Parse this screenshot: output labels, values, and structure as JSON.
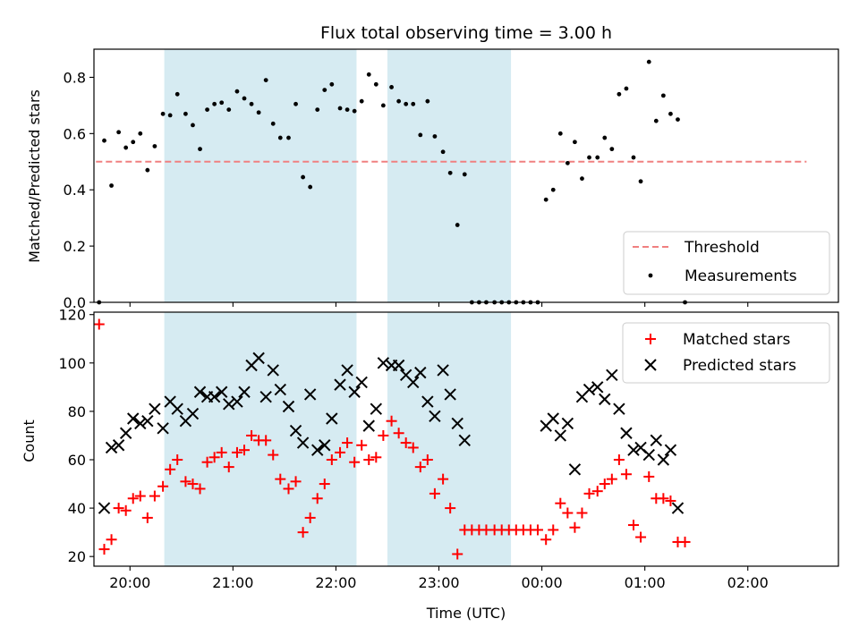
{
  "chart_data": [
    {
      "type": "scatter",
      "title": "Flux total observing time = 3.00 h",
      "xlabel": "",
      "ylabel": "Matched/Predicted stars",
      "xlim": [
        -0.35,
        6.88
      ],
      "ylim": [
        0,
        0.9
      ],
      "yticks": [
        0.0,
        0.2,
        0.4,
        0.6,
        0.8
      ],
      "ytick_labels": [
        "0.0",
        "0.2",
        "0.4",
        "0.6",
        "0.8"
      ],
      "shaded_intervals": [
        [
          0.333,
          2.2
        ],
        [
          2.5,
          3.7
        ]
      ],
      "colors": {
        "threshold": "#f08080",
        "measurements": "#000000",
        "shade": "#add8e6"
      },
      "legend": {
        "placement": "lower-right",
        "entries": [
          "Threshold",
          "Measurements"
        ]
      },
      "series": [
        {
          "name": "Threshold",
          "kind": "line",
          "x": [
            -0.33,
            6.57
          ],
          "values": [
            0.5,
            0.5
          ]
        },
        {
          "name": "Measurements",
          "kind": "points",
          "points": [
            [
              -0.3,
              0.0
            ],
            [
              -0.25,
              0.575
            ],
            [
              -0.18,
              0.415
            ],
            [
              -0.11,
              0.605
            ],
            [
              -0.04,
              0.55
            ],
            [
              0.03,
              0.57
            ],
            [
              0.1,
              0.6
            ],
            [
              0.17,
              0.47
            ],
            [
              0.24,
              0.555
            ],
            [
              0.32,
              0.67
            ],
            [
              0.39,
              0.665
            ],
            [
              0.46,
              0.74
            ],
            [
              0.54,
              0.67
            ],
            [
              0.61,
              0.63
            ],
            [
              0.68,
              0.545
            ],
            [
              0.75,
              0.685
            ],
            [
              0.82,
              0.705
            ],
            [
              0.89,
              0.71
            ],
            [
              0.96,
              0.685
            ],
            [
              1.04,
              0.75
            ],
            [
              1.11,
              0.725
            ],
            [
              1.18,
              0.705
            ],
            [
              1.25,
              0.675
            ],
            [
              1.32,
              0.79
            ],
            [
              1.39,
              0.635
            ],
            [
              1.46,
              0.585
            ],
            [
              1.54,
              0.585
            ],
            [
              1.61,
              0.705
            ],
            [
              1.68,
              0.445
            ],
            [
              1.75,
              0.41
            ],
            [
              1.82,
              0.685
            ],
            [
              1.89,
              0.755
            ],
            [
              1.96,
              0.775
            ],
            [
              2.04,
              0.69
            ],
            [
              2.11,
              0.685
            ],
            [
              2.18,
              0.68
            ],
            [
              2.25,
              0.715
            ],
            [
              2.32,
              0.81
            ],
            [
              2.39,
              0.775
            ],
            [
              2.46,
              0.7
            ],
            [
              2.54,
              0.765
            ],
            [
              2.61,
              0.715
            ],
            [
              2.68,
              0.705
            ],
            [
              2.75,
              0.705
            ],
            [
              2.82,
              0.595
            ],
            [
              2.89,
              0.715
            ],
            [
              2.96,
              0.59
            ],
            [
              3.04,
              0.535
            ],
            [
              3.11,
              0.46
            ],
            [
              3.18,
              0.275
            ],
            [
              3.25,
              0.455
            ],
            [
              3.32,
              0.0
            ],
            [
              3.39,
              0.0
            ],
            [
              3.46,
              0.0
            ],
            [
              3.54,
              0.0
            ],
            [
              3.61,
              0.0
            ],
            [
              3.68,
              0.0
            ],
            [
              3.75,
              0.0
            ],
            [
              3.82,
              0.0
            ],
            [
              3.89,
              0.0
            ],
            [
              3.96,
              0.0
            ],
            [
              4.04,
              0.365
            ],
            [
              4.11,
              0.4
            ],
            [
              4.18,
              0.6
            ],
            [
              4.25,
              0.495
            ],
            [
              4.32,
              0.57
            ],
            [
              4.39,
              0.44
            ],
            [
              4.46,
              0.515
            ],
            [
              4.54,
              0.515
            ],
            [
              4.61,
              0.585
            ],
            [
              4.68,
              0.545
            ],
            [
              4.75,
              0.74
            ],
            [
              4.82,
              0.76
            ],
            [
              4.89,
              0.515
            ],
            [
              4.96,
              0.43
            ],
            [
              5.04,
              0.855
            ],
            [
              5.11,
              0.645
            ],
            [
              5.18,
              0.735
            ],
            [
              5.25,
              0.67
            ],
            [
              5.32,
              0.65
            ],
            [
              5.39,
              0.0
            ]
          ]
        }
      ]
    },
    {
      "type": "scatter",
      "title": "",
      "xlabel": "Time (UTC)",
      "ylabel": "Count",
      "xlim": [
        -0.35,
        6.88
      ],
      "ylim": [
        16,
        121
      ],
      "yticks": [
        20,
        40,
        60,
        80,
        100,
        120
      ],
      "ytick_labels": [
        "20",
        "40",
        "60",
        "80",
        "100",
        "120"
      ],
      "xticks": [
        0.0,
        1.0,
        2.0,
        3.0,
        4.0,
        5.0,
        6.0
      ],
      "xtick_labels": [
        "20:00",
        "21:00",
        "22:00",
        "23:00",
        "00:00",
        "01:00",
        "02:00"
      ],
      "shaded_intervals": [
        [
          0.333,
          2.2
        ],
        [
          2.5,
          3.7
        ]
      ],
      "colors": {
        "matched": "#ff0000",
        "predicted": "#000000",
        "shade": "#add8e6"
      },
      "legend": {
        "placement": "top-right",
        "entries": [
          "Matched stars",
          "Predicted stars"
        ]
      },
      "series": [
        {
          "name": "Matched stars",
          "marker": "plus",
          "points": [
            [
              -0.3,
              116
            ],
            [
              -0.25,
              23
            ],
            [
              -0.18,
              27
            ],
            [
              -0.11,
              40
            ],
            [
              -0.04,
              39
            ],
            [
              0.03,
              44
            ],
            [
              0.1,
              45
            ],
            [
              0.17,
              36
            ],
            [
              0.24,
              45
            ],
            [
              0.32,
              49
            ],
            [
              0.39,
              56
            ],
            [
              0.46,
              60
            ],
            [
              0.54,
              51
            ],
            [
              0.61,
              50
            ],
            [
              0.68,
              48
            ],
            [
              0.75,
              59
            ],
            [
              0.82,
              61
            ],
            [
              0.89,
              63
            ],
            [
              0.96,
              57
            ],
            [
              1.04,
              63
            ],
            [
              1.11,
              64
            ],
            [
              1.18,
              70
            ],
            [
              1.25,
              68
            ],
            [
              1.32,
              68
            ],
            [
              1.39,
              62
            ],
            [
              1.46,
              52
            ],
            [
              1.54,
              48
            ],
            [
              1.61,
              51
            ],
            [
              1.68,
              30
            ],
            [
              1.75,
              36
            ],
            [
              1.82,
              44
            ],
            [
              1.89,
              50
            ],
            [
              1.96,
              60
            ],
            [
              2.04,
              63
            ],
            [
              2.11,
              67
            ],
            [
              2.18,
              59
            ],
            [
              2.25,
              66
            ],
            [
              2.32,
              60
            ],
            [
              2.39,
              61
            ],
            [
              2.46,
              70
            ],
            [
              2.54,
              76
            ],
            [
              2.61,
              71
            ],
            [
              2.68,
              67
            ],
            [
              2.75,
              65
            ],
            [
              2.82,
              57
            ],
            [
              2.89,
              60
            ],
            [
              2.96,
              46
            ],
            [
              3.04,
              52
            ],
            [
              3.11,
              40
            ],
            [
              3.18,
              21
            ],
            [
              3.25,
              31
            ],
            [
              3.32,
              31
            ],
            [
              3.39,
              31
            ],
            [
              3.46,
              31
            ],
            [
              3.54,
              31
            ],
            [
              3.61,
              31
            ],
            [
              3.68,
              31
            ],
            [
              3.75,
              31
            ],
            [
              3.82,
              31
            ],
            [
              3.89,
              31
            ],
            [
              3.96,
              31
            ],
            [
              4.04,
              27
            ],
            [
              4.11,
              31
            ],
            [
              4.18,
              42
            ],
            [
              4.25,
              38
            ],
            [
              4.32,
              32
            ],
            [
              4.39,
              38
            ],
            [
              4.46,
              46
            ],
            [
              4.54,
              47
            ],
            [
              4.61,
              50
            ],
            [
              4.68,
              52
            ],
            [
              4.75,
              60
            ],
            [
              4.82,
              54
            ],
            [
              4.89,
              33
            ],
            [
              4.96,
              28
            ],
            [
              5.04,
              53
            ],
            [
              5.11,
              44
            ],
            [
              5.18,
              44
            ],
            [
              5.25,
              43
            ],
            [
              5.32,
              26
            ],
            [
              5.39,
              26
            ]
          ]
        },
        {
          "name": "Predicted stars",
          "marker": "x",
          "points": [
            [
              -0.25,
              40
            ],
            [
              -0.18,
              65
            ],
            [
              -0.11,
              66
            ],
            [
              -0.04,
              71
            ],
            [
              0.03,
              77
            ],
            [
              0.1,
              75
            ],
            [
              0.17,
              76
            ],
            [
              0.24,
              81
            ],
            [
              0.32,
              73
            ],
            [
              0.39,
              84
            ],
            [
              0.46,
              81
            ],
            [
              0.54,
              76
            ],
            [
              0.61,
              79
            ],
            [
              0.68,
              88
            ],
            [
              0.75,
              86
            ],
            [
              0.82,
              86
            ],
            [
              0.89,
              88
            ],
            [
              0.96,
              83
            ],
            [
              1.04,
              84
            ],
            [
              1.11,
              88
            ],
            [
              1.18,
              99
            ],
            [
              1.25,
              102
            ],
            [
              1.32,
              86
            ],
            [
              1.39,
              97
            ],
            [
              1.46,
              89
            ],
            [
              1.54,
              82
            ],
            [
              1.61,
              72
            ],
            [
              1.68,
              67
            ],
            [
              1.75,
              87
            ],
            [
              1.82,
              64
            ],
            [
              1.89,
              66
            ],
            [
              1.96,
              77
            ],
            [
              2.04,
              91
            ],
            [
              2.11,
              97
            ],
            [
              2.18,
              88
            ],
            [
              2.25,
              92
            ],
            [
              2.32,
              74
            ],
            [
              2.39,
              81
            ],
            [
              2.46,
              100
            ],
            [
              2.54,
              99
            ],
            [
              2.61,
              99
            ],
            [
              2.68,
              95
            ],
            [
              2.75,
              92
            ],
            [
              2.82,
              96
            ],
            [
              2.89,
              84
            ],
            [
              2.96,
              78
            ],
            [
              3.04,
              97
            ],
            [
              3.11,
              87
            ],
            [
              3.18,
              75
            ],
            [
              3.25,
              68
            ],
            [
              4.04,
              74
            ],
            [
              4.11,
              77
            ],
            [
              4.18,
              70
            ],
            [
              4.25,
              75
            ],
            [
              4.32,
              56
            ],
            [
              4.39,
              86
            ],
            [
              4.46,
              89
            ],
            [
              4.54,
              90
            ],
            [
              4.61,
              85
            ],
            [
              4.68,
              95
            ],
            [
              4.75,
              81
            ],
            [
              4.82,
              71
            ],
            [
              4.89,
              64
            ],
            [
              4.96,
              65
            ],
            [
              5.04,
              62
            ],
            [
              5.11,
              68
            ],
            [
              5.18,
              60
            ],
            [
              5.25,
              64
            ],
            [
              5.32,
              40
            ]
          ]
        }
      ]
    }
  ]
}
